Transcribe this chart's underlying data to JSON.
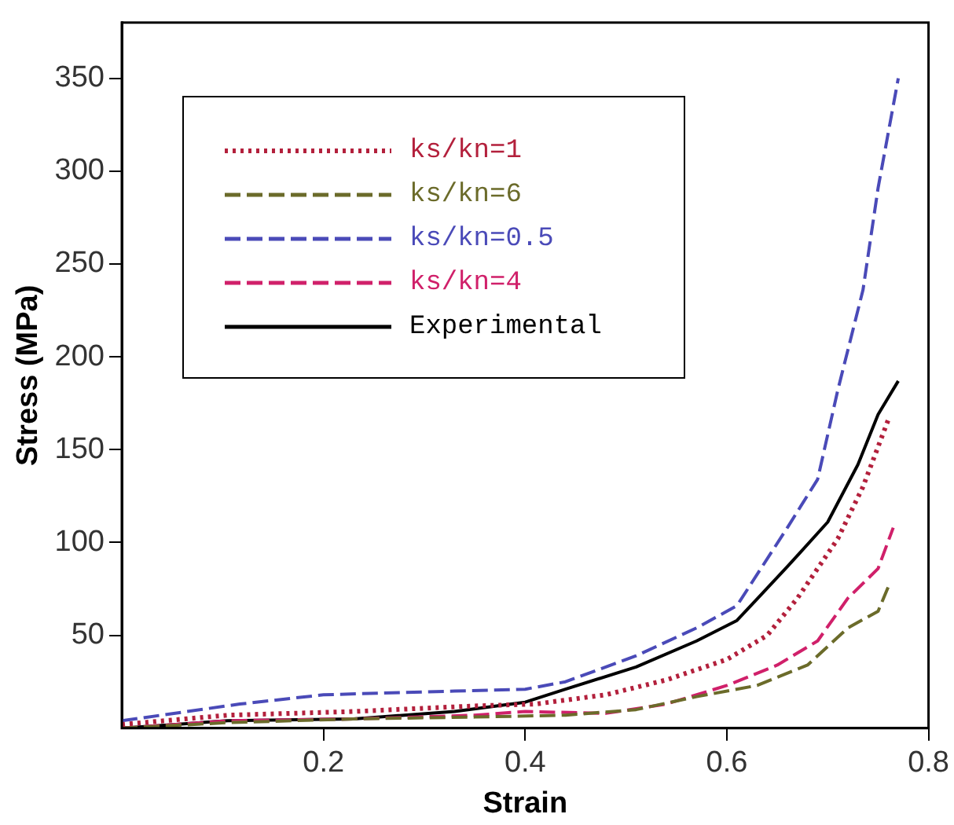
{
  "chart_data": {
    "type": "line",
    "xlabel": "Strain",
    "ylabel": "Stress (MPa)",
    "xlim": [
      0,
      0.8
    ],
    "xticks": [
      0.2,
      0.4,
      0.6,
      0.8
    ],
    "ylim": [
      0,
      380
    ],
    "yticks": [
      50,
      100,
      150,
      200,
      250,
      300,
      350
    ],
    "grid": false,
    "legend": "top left",
    "marker": "none",
    "series": [
      {
        "name": "ks/kn=1",
        "color": "#b3203c",
        "line_style": "dotted",
        "x": [
          0,
          0.105,
          0.23,
          0.35,
          0.41,
          0.48,
          0.54,
          0.6,
          0.64,
          0.67,
          0.71,
          0.735,
          0.76
        ],
        "values": [
          2,
          7,
          9,
          12,
          13,
          18,
          26,
          37,
          50,
          70,
          102,
          130,
          166
        ]
      },
      {
        "name": "ks/kn=6",
        "color": "#6b6b2a",
        "line_style": "dashed",
        "x": [
          0,
          0.105,
          0.23,
          0.35,
          0.44,
          0.51,
          0.57,
          0.63,
          0.68,
          0.72,
          0.75,
          0.76
        ],
        "values": [
          0,
          3,
          5,
          6,
          7,
          10,
          17,
          23,
          34,
          54,
          63,
          76
        ]
      },
      {
        "name": "ks/kn=0.5",
        "color": "#4a4ab8",
        "line_style": "dashed",
        "x": [
          0,
          0.117,
          0.2,
          0.33,
          0.4,
          0.44,
          0.51,
          0.57,
          0.61,
          0.66,
          0.69,
          0.71,
          0.735,
          0.75,
          0.77
        ],
        "values": [
          4,
          13,
          18,
          20,
          21,
          25,
          39,
          54,
          66,
          108,
          134,
          182,
          236,
          291,
          350
        ]
      },
      {
        "name": "ks/kn=4",
        "color": "#d0206a",
        "line_style": "dashed",
        "x": [
          0,
          0.105,
          0.23,
          0.35,
          0.4,
          0.48,
          0.54,
          0.6,
          0.65,
          0.69,
          0.72,
          0.75,
          0.765
        ],
        "values": [
          0,
          4,
          5,
          7,
          9,
          8,
          13,
          23,
          34,
          47,
          70,
          86,
          108
        ]
      },
      {
        "name": "Experimental",
        "color": "#000000",
        "line_style": "solid",
        "x": [
          0,
          0.105,
          0.23,
          0.33,
          0.4,
          0.44,
          0.51,
          0.57,
          0.61,
          0.66,
          0.7,
          0.73,
          0.75,
          0.77
        ],
        "values": [
          0,
          4,
          5,
          9,
          14,
          21,
          33,
          47,
          58,
          87,
          111,
          142,
          169,
          187
        ]
      }
    ]
  }
}
